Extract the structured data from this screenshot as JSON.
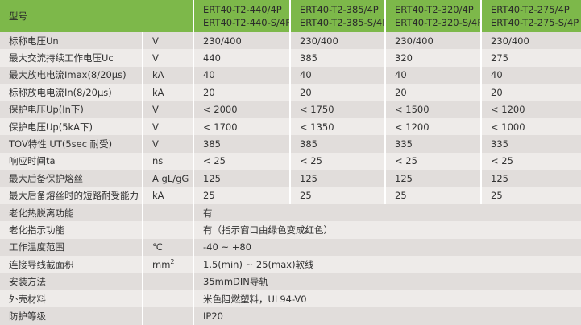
{
  "header": {
    "label": "型号",
    "models": [
      [
        "ERT40-T2-440/4P",
        "ERT40-T2-440-S/4P"
      ],
      [
        "ERT40-T2-385/4P",
        "ERT40-T2-385-S/4P"
      ],
      [
        "ERT40-T2-320/4P",
        "ERT40-T2-320-S/4P"
      ],
      [
        "ERT40-T2-275/4P",
        "ERT40-T2-275-S/4P"
      ]
    ]
  },
  "colors": {
    "header_bg": "#7db84a",
    "row_dark": "#e1dddb",
    "row_light": "#eeebe9"
  },
  "rows": [
    {
      "name": "标称电压Un",
      "unit": "V",
      "values": [
        "230/400",
        "230/400",
        "230/400",
        "230/400"
      ]
    },
    {
      "name": "最大交流持续工作电压Uc",
      "unit": "V",
      "values": [
        "440",
        "385",
        "320",
        "275"
      ]
    },
    {
      "name": "最大放电电流Imax(8/20μs)",
      "unit": "kA",
      "values": [
        "40",
        "40",
        "40",
        "40"
      ]
    },
    {
      "name": "标称放电电流In(8/20μs)",
      "unit": "kA",
      "values": [
        "20",
        "20",
        "20",
        "20"
      ]
    },
    {
      "name": "保护电压Up(In下)",
      "unit": "V",
      "values": [
        "< 2000",
        "< 1750",
        "< 1500",
        "< 1200"
      ]
    },
    {
      "name": "保护电压Up(5kA下)",
      "unit": "V",
      "values": [
        "< 1700",
        "< 1350",
        "< 1200",
        "< 1000"
      ]
    },
    {
      "name": "TOV特性 UT(5sec 耐受)",
      "unit": "V",
      "values": [
        "385",
        "385",
        "335",
        "335"
      ]
    },
    {
      "name": "响应时间ta",
      "unit": "ns",
      "values": [
        "< 25",
        "< 25",
        "< 25",
        "< 25"
      ]
    },
    {
      "name": "最大后备保护熔丝",
      "unit": "A gL/gG",
      "values": [
        "125",
        "125",
        "125",
        "125"
      ]
    },
    {
      "name": "最大后备熔丝时的短路耐受能力",
      "unit": "kA",
      "values": [
        "25",
        "25",
        "25",
        "25"
      ]
    }
  ],
  "merged_rows": [
    {
      "name": "老化热脱离功能",
      "unit": "",
      "value": "有"
    },
    {
      "name": "老化指示功能",
      "unit": "",
      "value": "有（指示窗口由绿色变成红色）"
    },
    {
      "name": "工作温度范围",
      "unit": "℃",
      "value": "-40 ~ +80"
    },
    {
      "name": "连接导线截面积",
      "unit": "mm",
      "unit_sup": "2",
      "value": "1.5(min) ~ 25(max)软线"
    },
    {
      "name": "安装方法",
      "unit": "",
      "value": "35mmDIN导轨"
    },
    {
      "name": "外壳材料",
      "unit": "",
      "value": "米色阻燃塑料，UL94-V0"
    },
    {
      "name": "防护等级",
      "unit": "",
      "value": "IP20"
    }
  ]
}
